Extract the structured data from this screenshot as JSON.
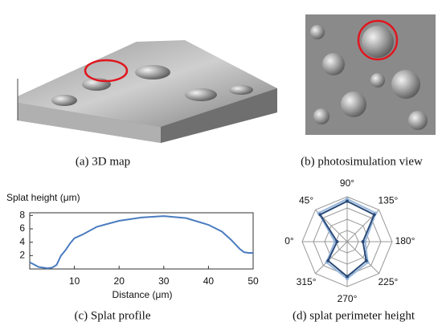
{
  "captions": {
    "a": "(a) 3D map",
    "b": "(b) photosimulation view",
    "c": "(c) Splat profile",
    "d": "(d) splat perimeter height"
  },
  "chart_data": [
    {
      "type": "line",
      "ylabel": "Splat height (μm)",
      "xlabel": "Distance (μm)",
      "color": "#4a7cc0",
      "x": [
        0,
        2,
        4,
        5,
        6,
        7,
        8,
        9,
        10,
        12,
        15,
        20,
        25,
        30,
        35,
        40,
        43,
        45,
        47,
        48,
        49,
        50
      ],
      "values": [
        1.0,
        0.3,
        0.1,
        0.2,
        0.6,
        2.0,
        2.8,
        3.8,
        4.6,
        5.2,
        6.3,
        7.2,
        7.7,
        7.9,
        7.6,
        6.6,
        5.6,
        4.4,
        3.0,
        2.5,
        2.4,
        2.4
      ],
      "xlim": [
        0,
        50
      ],
      "xticks": [
        10,
        20,
        30,
        40,
        50
      ],
      "ylim": [
        0,
        8.4
      ],
      "yticks": [
        2,
        4,
        6,
        8
      ]
    },
    {
      "type": "radar",
      "theta": [
        {
          "value": 90,
          "label": "90°"
        },
        {
          "value": 135,
          "label": "135°"
        },
        {
          "value": 180,
          "label": "180°"
        },
        {
          "value": 225,
          "label": "225°"
        },
        {
          "value": 270,
          "label": "270°"
        },
        {
          "value": 315,
          "label": "315°"
        },
        {
          "value": 0,
          "label": "0°"
        },
        {
          "value": 45,
          "label": "45°"
        }
      ],
      "series": [
        {
          "color": "#9ab8dc",
          "values": [
            3.8,
            3.6,
            1.6,
            2.6,
            3.3,
            2.6,
            1.1,
            3.6
          ]
        },
        {
          "color": "#2a4a78",
          "values": [
            3.6,
            3.4,
            1.4,
            2.4,
            3.1,
            2.4,
            0.9,
            3.4
          ]
        }
      ],
      "rlim": [
        0,
        4
      ],
      "rticks": [
        1,
        2,
        3,
        4
      ]
    }
  ]
}
